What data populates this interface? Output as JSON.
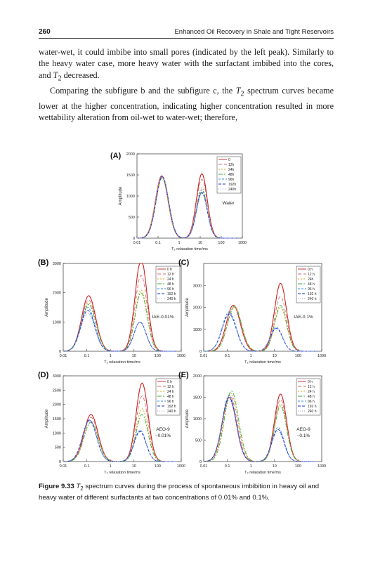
{
  "header": {
    "page_number": "260",
    "running_title": "Enhanced Oil Recovery in Shale and Tight Reservoirs"
  },
  "body": {
    "para1_lines": [
      "water-wet, it could imbibe into small pores (indicated by the left peak).",
      "Similarly to the heavy water case, more heavy water with the surfactant"
    ],
    "para1_last_prefix": "imbibed into the cores, and ",
    "para1_last_t": "T",
    "para1_last_sub": "2",
    "para1_last_suffix": " decreased.",
    "para2_line1_prefix": "Comparing the subfigure b and the subfigure c, the ",
    "para2_line1_t": "T",
    "para2_line1_sub": "2",
    "para2_line1_suffix": " spectrum curves",
    "para2_lines": [
      "became lower at the higher concentration, indicating higher concentration",
      "resulted in more wettability alteration from oil-wet to water-wet; therefore,"
    ]
  },
  "figure": {
    "colors": {
      "0": "#cc1f1f",
      "12": "#d46a6a",
      "24": "#d9a020",
      "48": "#3ab03a",
      "96": "#2e8be0",
      "192": "#1a2bd0",
      "240": "#9a9ae8"
    },
    "panels": [
      {
        "id": "A",
        "label": "(A)",
        "annotation": "Water",
        "ylabel": "Amplitude",
        "xlabel": "T₂ relaxation time/ms",
        "yticks": [
          "0",
          "500",
          "1000",
          "1500",
          "2000"
        ],
        "legend": [
          "0",
          "12h",
          "24h",
          "48h",
          "96h",
          "192h",
          "240h"
        ]
      },
      {
        "id": "B",
        "label": "(B)",
        "annotation": "IAE-0.01%",
        "ylabel": "Amplitude",
        "xlabel": "T₂ relaxation time/ms",
        "yticks": [
          "0",
          "1000",
          "2000",
          "3000"
        ],
        "legend": [
          "0 h",
          "12 h",
          "24 h",
          "48 h",
          "96 h",
          "192 h",
          "240 h"
        ]
      },
      {
        "id": "C",
        "label": "(C)",
        "annotation": "IAE-0.1%",
        "ylabel": "Amplitude",
        "xlabel": "T₂ relaxation time/ms",
        "yticks": [
          "0",
          "1000",
          "2000",
          "3000"
        ],
        "legend": [
          "0 h",
          "12 h",
          "24h",
          "48 h",
          "96 h",
          "192 h",
          "240 h"
        ]
      },
      {
        "id": "D",
        "label": "(D)",
        "annotation": "AEO-9\n–0.01%",
        "ylabel": "Amplitude",
        "xlabel": "T₂ relaxation time/ms",
        "yticks": [
          "0",
          "500",
          "1000",
          "1500",
          "2000",
          "2500",
          "3000"
        ],
        "legend": [
          "0 h",
          "12 h",
          "24 h",
          "48 h",
          "96 h",
          "192 h",
          "240 h"
        ]
      },
      {
        "id": "E",
        "label": "(E)",
        "annotation": "AEO-9\n–0.1%",
        "ylabel": "Amplitude",
        "xlabel": "T₂ relaxation time/ms",
        "yticks": [
          "0",
          "500",
          "1000",
          "1500",
          "2000"
        ],
        "legend": [
          "0 h",
          "12 h",
          "24 h",
          "48 h",
          "96 h",
          "192 h",
          "240 h"
        ]
      }
    ],
    "xticks": [
      "0.01",
      "0.1",
      "1",
      "10",
      "100",
      "1000"
    ]
  },
  "caption": {
    "label": "Figure 9.33",
    "t": "T",
    "sub": "2",
    "text": " spectrum curves during the process of spontaneous imbibition in heavy oil and heavy water of different surfactants at two concentrations of 0.01% and 0.1%."
  },
  "chart_data": [
    {
      "type": "line",
      "panel": "A",
      "xlabel": "T₂ relaxation time/ms",
      "ylabel": "Amplitude",
      "x_scale": "log",
      "xlim": [
        0.01,
        1000
      ],
      "ylim": [
        0,
        2000
      ],
      "series": [
        {
          "name": "0",
          "peaks": [
            [
              0.15,
              1480
            ],
            [
              12,
              1530
            ]
          ],
          "trough": [
            1.2,
            560
          ]
        },
        {
          "name": "12h",
          "peaks": [
            [
              0.15,
              1460
            ],
            [
              12,
              1400
            ]
          ],
          "trough": [
            1.2,
            540
          ]
        },
        {
          "name": "24h",
          "peaks": [
            [
              0.15,
              1450
            ],
            [
              12,
              1200
            ]
          ],
          "trough": [
            1.2,
            520
          ]
        },
        {
          "name": "48h",
          "peaks": [
            [
              0.16,
              1440
            ],
            [
              12,
              1100
            ]
          ],
          "trough": [
            1.2,
            480
          ]
        },
        {
          "name": "96h",
          "peaks": [
            [
              0.16,
              1470
            ],
            [
              12,
              1150
            ]
          ],
          "trough": [
            1.2,
            600
          ]
        },
        {
          "name": "192h",
          "peaks": [
            [
              0.16,
              1460
            ],
            [
              12,
              1080
            ]
          ],
          "trough": [
            1.2,
            610
          ]
        },
        {
          "name": "240h",
          "peaks": [
            [
              0.16,
              1450
            ],
            [
              12,
              1060
            ]
          ],
          "trough": [
            1.2,
            620
          ]
        }
      ]
    },
    {
      "type": "line",
      "panel": "B",
      "xlabel": "T₂ relaxation time/ms",
      "ylabel": "Amplitude",
      "x_scale": "log",
      "xlim": [
        0.01,
        1000
      ],
      "ylim": [
        0,
        3000
      ],
      "series": [
        {
          "name": "0 h",
          "peaks": [
            [
              0.12,
              1900
            ],
            [
              20,
              3150
            ]
          ],
          "trough": [
            1.3,
            1000
          ]
        },
        {
          "name": "12 h",
          "peaks": [
            [
              0.12,
              1750
            ],
            [
              20,
              2600
            ]
          ],
          "trough": [
            1.3,
            950
          ]
        },
        {
          "name": "24 h",
          "peaks": [
            [
              0.12,
              1650
            ],
            [
              20,
              2100
            ]
          ],
          "trough": [
            1.3,
            900
          ]
        },
        {
          "name": "48 h",
          "peaks": [
            [
              0.12,
              1600
            ],
            [
              20,
              2000
            ]
          ],
          "trough": [
            1.3,
            900
          ]
        },
        {
          "name": "96 h",
          "peaks": [
            [
              0.11,
              1500
            ],
            [
              18,
              1000
            ]
          ],
          "trough": [
            1.3,
            800
          ]
        },
        {
          "name": "192 h",
          "peaks": [
            [
              0.11,
              1400
            ],
            [
              18,
              1000
            ]
          ],
          "trough": [
            1.3,
            750
          ]
        },
        {
          "name": "240 h",
          "peaks": [
            [
              0.11,
              1300
            ],
            [
              18,
              1000
            ]
          ],
          "trough": [
            1.3,
            700
          ]
        }
      ]
    },
    {
      "type": "line",
      "panel": "C",
      "xlabel": "T₂ relaxation time/ms",
      "ylabel": "Amplitude",
      "x_scale": "log",
      "xlim": [
        0.01,
        1000
      ],
      "ylim": [
        0,
        4000
      ],
      "series": [
        {
          "name": "0 h",
          "peaks": [
            [
              0.18,
              2100
            ],
            [
              18,
              3100
            ]
          ],
          "trough": [
            2,
            1100
          ]
        },
        {
          "name": "12 h",
          "peaks": [
            [
              0.2,
              2050
            ],
            [
              18,
              2500
            ]
          ],
          "trough": [
            2,
            1050
          ]
        },
        {
          "name": "24h",
          "peaks": [
            [
              0.2,
              2000
            ],
            [
              18,
              2000
            ]
          ],
          "trough": [
            2,
            1000
          ]
        },
        {
          "name": "48 h",
          "peaks": [
            [
              0.2,
              2050
            ],
            [
              18,
              2100
            ]
          ],
          "trough": [
            2,
            1000
          ]
        },
        {
          "name": "96 h",
          "peaks": [
            [
              0.12,
              1800
            ],
            [
              12,
              1100
            ]
          ],
          "trough": [
            2,
            950
          ]
        },
        {
          "name": "192 h",
          "peaks": [
            [
              0.12,
              1700
            ],
            [
              12,
              1050
            ]
          ],
          "trough": [
            2,
            900
          ]
        },
        {
          "name": "240 h",
          "peaks": [
            [
              0.12,
              1650
            ],
            [
              12,
              1050
            ]
          ],
          "trough": [
            2,
            900
          ]
        }
      ]
    },
    {
      "type": "line",
      "panel": "D",
      "xlabel": "T₂ relaxation time/ms",
      "ylabel": "Amplitude",
      "x_scale": "log",
      "xlim": [
        0.01,
        1000
      ],
      "ylim": [
        0,
        3000
      ],
      "series": [
        {
          "name": "0 h",
          "peaks": [
            [
              0.15,
              1650
            ],
            [
              22,
              2750
            ]
          ],
          "trough": [
            1.5,
            550
          ]
        },
        {
          "name": "12 h",
          "peaks": [
            [
              0.15,
              1550
            ],
            [
              22,
              2300
            ]
          ],
          "trough": [
            1.5,
            600
          ]
        },
        {
          "name": "24 h",
          "peaks": [
            [
              0.15,
              1400
            ],
            [
              22,
              1850
            ]
          ],
          "trough": [
            1.5,
            650
          ]
        },
        {
          "name": "48 h",
          "peaks": [
            [
              0.15,
              1380
            ],
            [
              22,
              1650
            ]
          ],
          "trough": [
            1.5,
            700
          ]
        },
        {
          "name": "96 h",
          "peaks": [
            [
              0.13,
              1450
            ],
            [
              18,
              1100
            ]
          ],
          "trough": [
            1.5,
            900
          ]
        },
        {
          "name": "192 h",
          "peaks": [
            [
              0.13,
              1450
            ],
            [
              18,
              1050
            ]
          ],
          "trough": [
            1.5,
            900
          ]
        },
        {
          "name": "240 h",
          "peaks": [
            [
              0.13,
              1400
            ],
            [
              18,
              1100
            ]
          ],
          "trough": [
            1.5,
            900
          ]
        }
      ]
    },
    {
      "type": "line",
      "panel": "E",
      "xlabel": "T₂ relaxation time/ms",
      "ylabel": "Amplitude",
      "x_scale": "log",
      "xlim": [
        0.01,
        1000
      ],
      "ylim": [
        0,
        2000
      ],
      "series": [
        {
          "name": "0 h",
          "peaks": [
            [
              0.12,
              1500
            ],
            [
              18,
              1580
            ]
          ],
          "trough": [
            2,
            600
          ]
        },
        {
          "name": "12 h",
          "peaks": [
            [
              0.13,
              1550
            ],
            [
              18,
              1450
            ]
          ],
          "trough": [
            2,
            600
          ]
        },
        {
          "name": "24 h",
          "peaks": [
            [
              0.14,
              1600
            ],
            [
              18,
              1350
            ]
          ],
          "trough": [
            2,
            650
          ]
        },
        {
          "name": "48 h",
          "peaks": [
            [
              0.15,
              1650
            ],
            [
              18,
              1300
            ]
          ],
          "trough": [
            2,
            650
          ]
        },
        {
          "name": "96 h",
          "peaks": [
            [
              0.12,
              1550
            ],
            [
              14,
              800
            ]
          ],
          "trough": [
            2,
            650
          ]
        },
        {
          "name": "192 h",
          "peaks": [
            [
              0.12,
              1500
            ],
            [
              14,
              750
            ]
          ],
          "trough": [
            2,
            600
          ]
        },
        {
          "name": "240 h",
          "peaks": [
            [
              0.12,
              1450
            ],
            [
              14,
              700
            ]
          ],
          "trough": [
            2,
            600
          ]
        }
      ]
    }
  ]
}
